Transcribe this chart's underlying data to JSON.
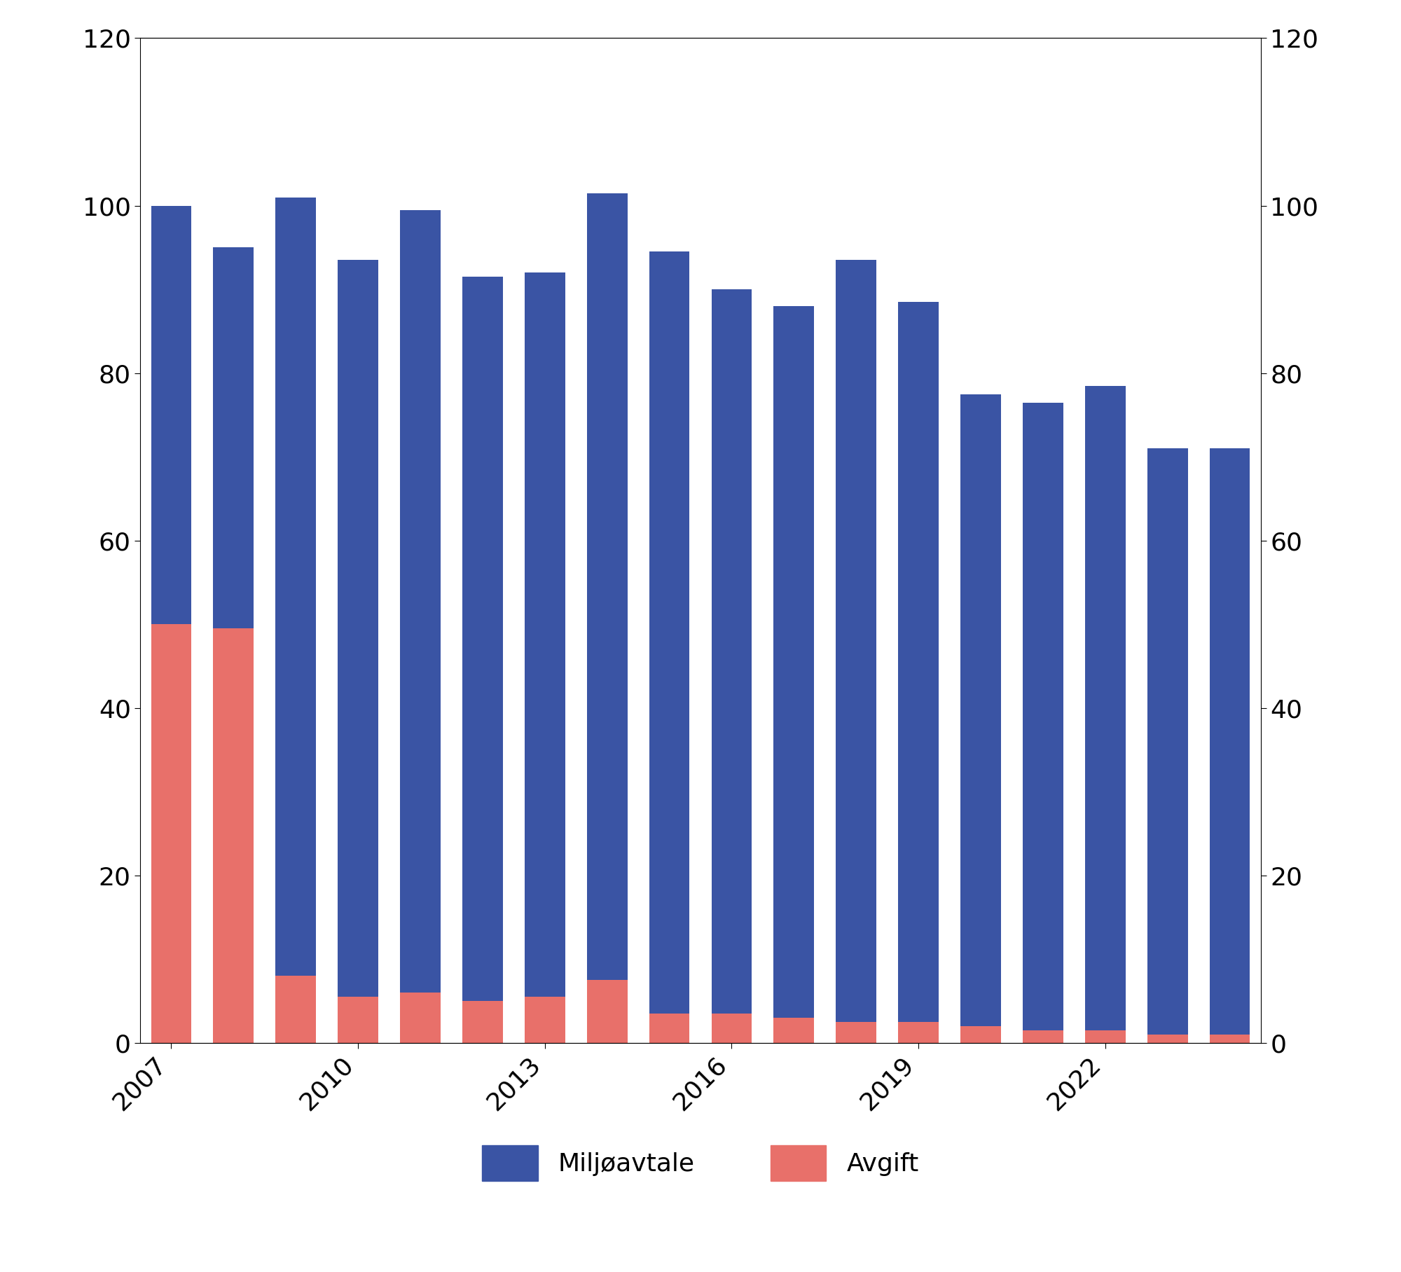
{
  "years": [
    2007,
    2008,
    2009,
    2010,
    2011,
    2012,
    2013,
    2014,
    2015,
    2016,
    2017,
    2018,
    2019,
    2020,
    2021,
    2022,
    2023,
    2024
  ],
  "miljøavtale": [
    50.0,
    45.5,
    93.0,
    88.0,
    93.5,
    86.5,
    86.5,
    94.0,
    91.0,
    86.5,
    85.0,
    91.0,
    86.0,
    75.5,
    75.0,
    77.0,
    70.0,
    70.0
  ],
  "avgift": [
    50.0,
    49.5,
    8.0,
    5.5,
    6.0,
    5.0,
    5.5,
    7.5,
    3.5,
    3.5,
    3.0,
    2.5,
    2.5,
    2.0,
    1.5,
    1.5,
    1.0,
    1.0
  ],
  "color_miljøavtale": "#3a54a4",
  "color_avgift": "#e8706a",
  "ylim": [
    0,
    120
  ],
  "yticks": [
    0,
    20,
    40,
    60,
    80,
    100,
    120
  ],
  "legend_miljøavtale": "Miljøavtale",
  "legend_avgift": "Avgift",
  "background_color": "#ffffff",
  "bar_width": 0.65,
  "tick_fontsize": 26,
  "legend_fontsize": 26,
  "tick_years": [
    2007,
    2010,
    2013,
    2016,
    2019,
    2022
  ]
}
